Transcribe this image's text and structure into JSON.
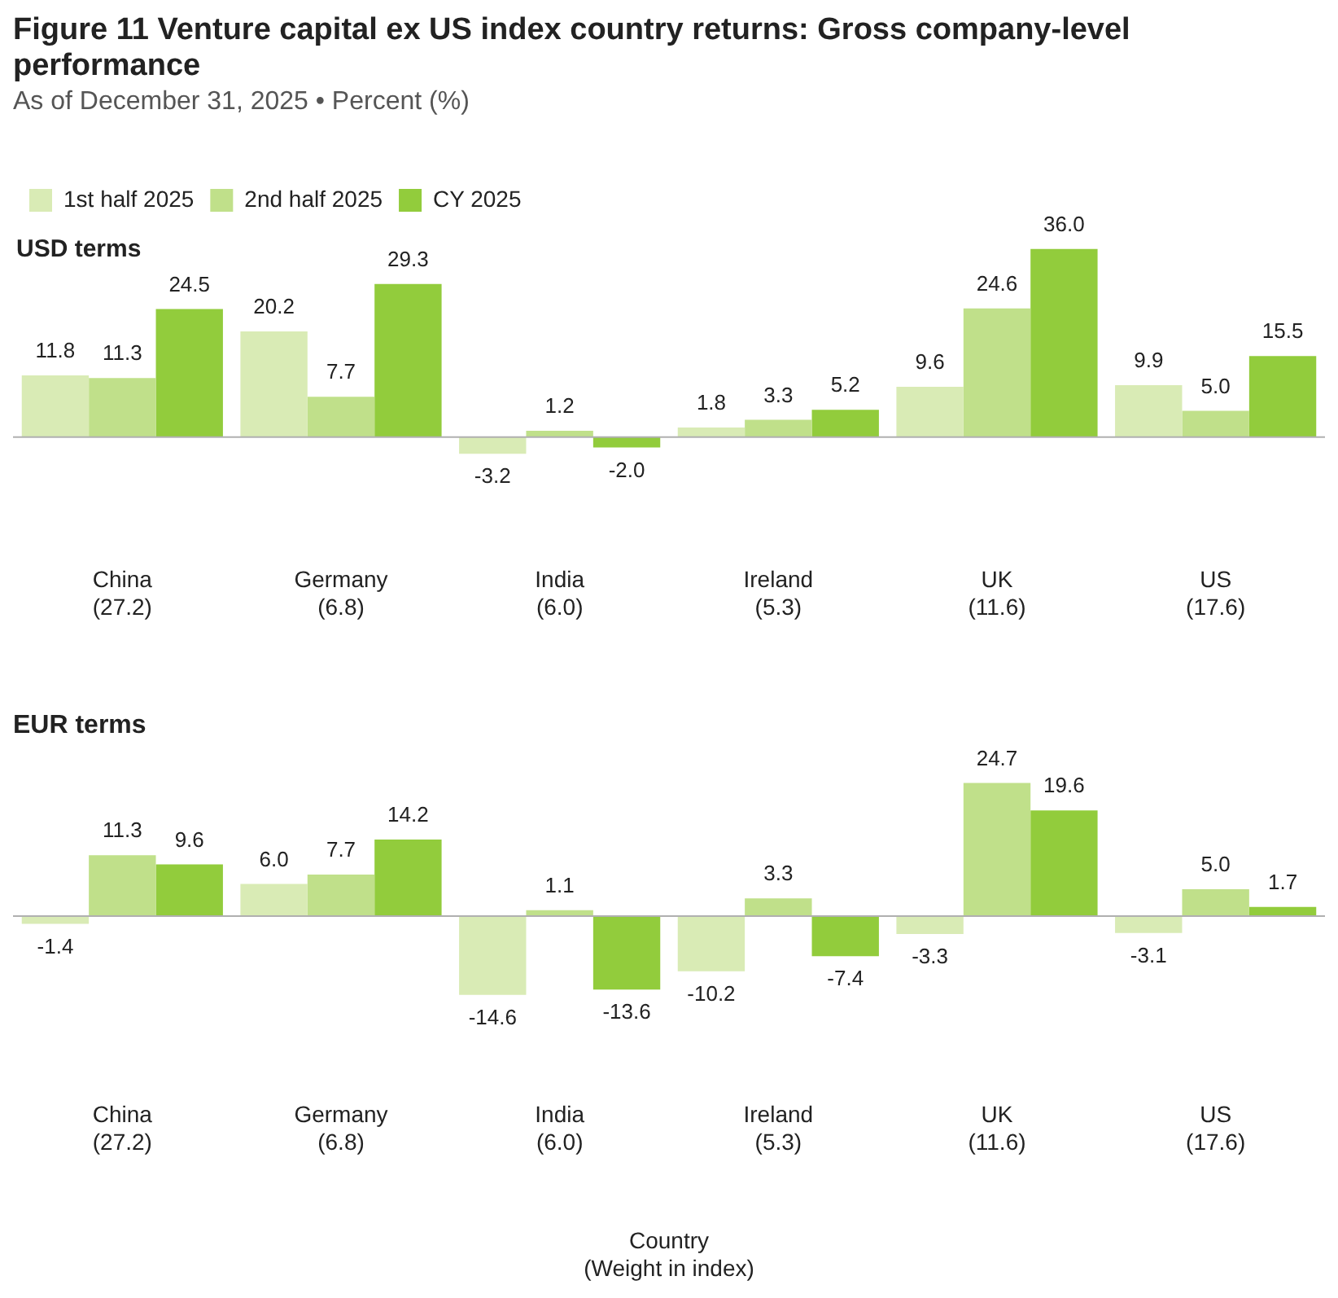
{
  "chart_data": [
    {
      "type": "bar",
      "title": "Figure 11   Venture capital ex US index country returns: Gross company-level performance",
      "subtitle": "As of December 31, 2025 • Percent (%)",
      "annotations": [
        "USD terms"
      ],
      "categories": [
        "China\n(27.2)",
        "Germany\n(6.8)",
        "India\n(6.0)",
        "Ireland\n(5.3)",
        "UK\n(11.6)",
        "US\n(17.6)"
      ],
      "legend": "top left",
      "grid": false,
      "tick_labels": "x",
      "series": [
        {
          "name": "1st half 2025",
          "color": "#d9ebb5",
          "values": [
            11.8,
            20.2,
            -3.2,
            1.8,
            9.6,
            9.9
          ],
          "value_labels": [
            "11.8",
            "20.2",
            "-3.2",
            "1.8",
            "9.6",
            "9.9"
          ]
        },
        {
          "name": "2nd half 2025",
          "color": "#c0e08a",
          "values": [
            11.3,
            7.7,
            1.2,
            3.3,
            24.6,
            5.0
          ],
          "value_labels": [
            "11.3",
            "7.7",
            "1.2",
            "3.3",
            "24.6",
            "5.0"
          ]
        },
        {
          "name": "CY 2025",
          "color": "#92cc3c",
          "values": [
            24.5,
            29.3,
            -2.0,
            5.2,
            36.0,
            15.5
          ],
          "value_labels": [
            "24.5",
            "29.3",
            "-2.0",
            "5.2",
            "36.0",
            "15.5"
          ]
        }
      ]
    },
    {
      "type": "bar",
      "title": "EUR terms",
      "xlabel": "Country\n(Weight in index)",
      "categories": [
        "China\n(27.2)",
        "Germany\n(6.8)",
        "India\n(6.0)",
        "Ireland\n(5.3)",
        "UK\n(11.6)",
        "US\n(17.6)"
      ],
      "legend": false,
      "grid": false,
      "tick_labels": "x",
      "series": [
        {
          "color": "#d9ebb5",
          "values": [
            -1.4,
            6.0,
            -14.6,
            -10.2,
            -3.3,
            -3.1
          ],
          "value_labels": [
            "-1.4",
            "6.0",
            "-14.6",
            "-10.2",
            "-3.3",
            "-3.1"
          ]
        },
        {
          "color": "#c0e08a",
          "values": [
            11.3,
            7.7,
            1.1,
            3.3,
            24.7,
            5.0
          ],
          "value_labels": [
            "11.3",
            "7.7",
            "1.1",
            "3.3",
            "24.7",
            "5.0"
          ]
        },
        {
          "color": "#92cc3c",
          "values": [
            9.6,
            14.2,
            -13.6,
            -7.4,
            19.6,
            1.7
          ],
          "value_labels": [
            "9.6",
            "14.2",
            "-13.6",
            "-7.4",
            "19.6",
            "1.7"
          ]
        }
      ]
    }
  ]
}
